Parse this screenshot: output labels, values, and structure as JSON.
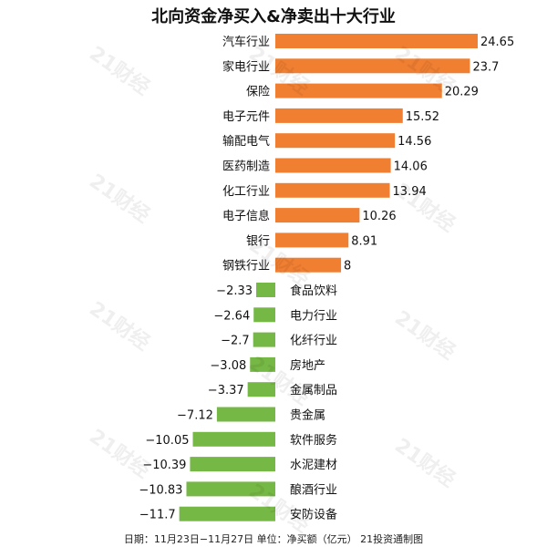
{
  "watermark": "21财经",
  "footer": "日期：11月23日−11月27日 单位：净买额（亿元） 21投资通制图",
  "chart_data": {
    "type": "bar",
    "orientation": "horizontal",
    "title": "北向资金净买入&净卖出十大行业",
    "xlabel": "",
    "ylabel": "",
    "unit": "亿元",
    "grid": false,
    "legend": "none",
    "colors": {
      "positive": "#F07F32",
      "negative": "#76B845"
    },
    "categories": [
      "汽车行业",
      "家电行业",
      "保险",
      "电子元件",
      "输配电气",
      "医药制造",
      "化工行业",
      "电子信息",
      "银行",
      "钢铁行业",
      "食品饮料",
      "电力行业",
      "化纤行业",
      "房地产",
      "金属制品",
      "贵金属",
      "软件服务",
      "水泥建材",
      "酿酒行业",
      "安防设备"
    ],
    "values": [
      24.65,
      23.7,
      20.29,
      15.52,
      14.56,
      14.06,
      13.94,
      10.26,
      8.91,
      8,
      -2.33,
      -2.64,
      -2.7,
      -3.08,
      -3.37,
      -7.12,
      -10.05,
      -10.39,
      -10.83,
      -11.7
    ],
    "value_labels": [
      "24.65",
      "23.7",
      "20.29",
      "15.52",
      "14.56",
      "14.06",
      "13.94",
      "10.26",
      "8.91",
      "8",
      "−2.33",
      "−2.64",
      "−2.7",
      "−3.08",
      "−3.37",
      "−7.12",
      "−10.05",
      "−10.39",
      "−10.83",
      "−11.7"
    ],
    "xlim": [
      -11.7,
      24.65
    ]
  }
}
